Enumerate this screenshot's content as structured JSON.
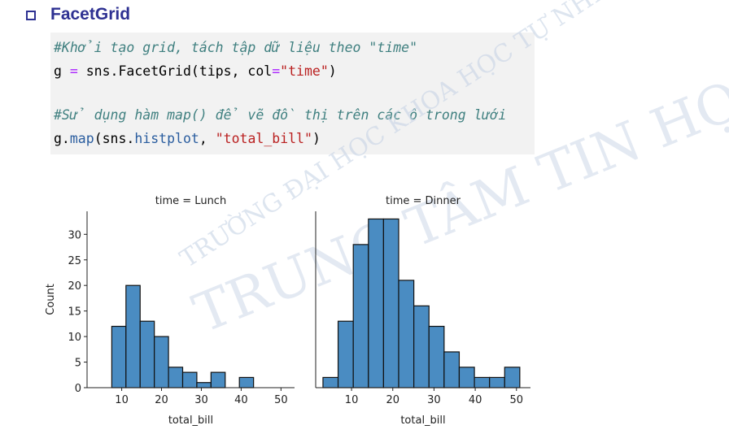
{
  "heading": "FacetGrid",
  "code": {
    "lines": [
      [
        {
          "text": "#Khởi tạo grid, tách tập dữ liệu theo \"time\"",
          "color": "#408080"
        }
      ],
      [
        {
          "text": "g ",
          "color": "#000000"
        },
        {
          "text": "=",
          "color": "#aa22ff"
        },
        {
          "text": " sns.FacetGrid(tips, col",
          "color": "#000000"
        },
        {
          "text": "=",
          "color": "#aa22ff"
        },
        {
          "text": "\"time\"",
          "color": "#ba2121"
        },
        {
          "text": ")",
          "color": "#000000"
        }
      ],
      [
        {
          "text": "#Sử dụng hàm map() để vẽ đồ thị trên các ô trong lưới",
          "color": "#408080"
        }
      ],
      [
        {
          "text": "g.",
          "color": "#000000"
        },
        {
          "text": "map",
          "color": "#2a5d9f"
        },
        {
          "text": "(sns.",
          "color": "#000000"
        },
        {
          "text": "histplot",
          "color": "#2a5d9f"
        },
        {
          "text": ", ",
          "color": "#000000"
        },
        {
          "text": "\"total_bill\"",
          "color": "#ba2121"
        },
        {
          "text": ")",
          "color": "#000000"
        }
      ]
    ]
  },
  "watermark": [
    "TRƯỜNG ĐẠI HỌC KHOA HỌC TỰ NHIÊN",
    "TRUNG TÂM TIN HỌC"
  ],
  "chart_data": [
    {
      "type": "histogram",
      "title": "time = Lunch",
      "x_label": "total_bill",
      "y_label": "Count",
      "color": "#4a8cc2",
      "bins": [
        7.51,
        11.07,
        14.63,
        18.19,
        21.75,
        25.31,
        28.87,
        32.43,
        35.99,
        39.55,
        43.11
      ],
      "values": [
        12,
        20,
        13,
        10,
        4,
        3,
        1,
        3,
        0,
        2
      ],
      "xlim": [
        1.3,
        53.4
      ],
      "xticks": [
        10,
        20,
        30,
        40,
        50
      ],
      "ylim": [
        0,
        34.5
      ],
      "yticks": [
        0,
        5,
        10,
        15,
        20,
        25,
        30
      ]
    },
    {
      "type": "histogram",
      "title": "time = Dinner",
      "x_label": "total_bill",
      "color": "#4a8cc2",
      "bins": [
        3.07,
        6.74,
        10.42,
        14.09,
        17.76,
        21.43,
        25.11,
        28.78,
        32.45,
        36.12,
        39.8,
        43.47,
        47.14,
        50.81
      ],
      "values": [
        2,
        13,
        28,
        33,
        33,
        21,
        16,
        12,
        7,
        4,
        2,
        2,
        4
      ],
      "xlim": [
        1.3,
        53.4
      ],
      "xticks": [
        10,
        20,
        30,
        40,
        50
      ],
      "ylim": [
        0,
        34.5
      ]
    }
  ]
}
